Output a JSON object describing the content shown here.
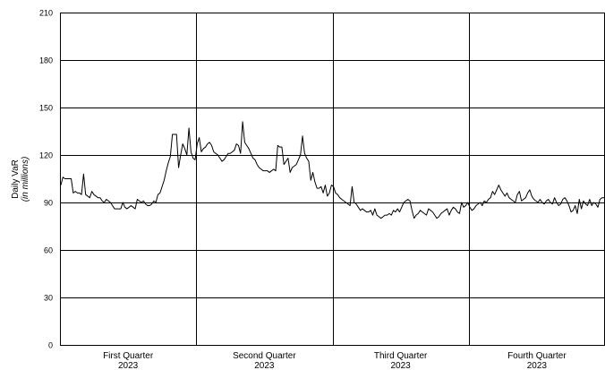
{
  "chart_data": {
    "type": "line",
    "ylabel": "Daily VaR",
    "ylabel_sub": "(in millions)",
    "ylim": [
      0,
      210
    ],
    "yticks": [
      0,
      30,
      60,
      90,
      120,
      150,
      180,
      210
    ],
    "grid": true,
    "quarters": [
      {
        "label": "First Quarter",
        "year": "2023"
      },
      {
        "label": "Second Quarter",
        "year": "2023"
      },
      {
        "label": "Third Quarter",
        "year": "2023"
      },
      {
        "label": "Fourth Quarter",
        "year": "2023"
      }
    ],
    "line_color": "#000000",
    "series": [
      {
        "values": [
          101,
          106,
          105,
          105,
          105,
          105,
          96,
          97,
          96,
          96,
          95,
          108,
          95,
          94,
          93,
          97,
          95,
          94,
          93,
          93,
          91,
          90,
          92,
          91,
          90,
          88,
          86,
          86,
          86,
          86,
          90,
          87,
          86,
          87,
          88,
          87,
          86,
          92,
          91,
          90,
          91,
          89,
          88,
          88,
          89,
          91,
          90,
          95,
          96,
          100,
          104,
          110,
          115,
          119,
          133,
          133,
          133,
          112,
          120,
          127,
          124,
          120,
          137,
          122,
          118,
          117,
          127,
          131,
          122,
          124,
          125,
          127,
          128,
          126,
          122,
          121,
          120,
          118,
          116,
          117,
          119,
          121,
          121,
          122,
          123,
          127,
          126,
          121,
          141,
          128,
          126,
          124,
          121,
          118,
          117,
          114,
          112,
          111,
          110,
          110,
          110,
          109,
          110,
          111,
          110,
          126,
          125,
          125,
          114,
          116,
          118,
          109,
          112,
          113,
          114,
          117,
          120,
          132,
          121,
          118,
          116,
          104,
          109,
          103,
          99,
          99,
          100,
          96,
          101,
          94,
          96,
          101,
          100,
          96,
          95,
          93,
          92,
          91,
          90,
          89,
          88,
          100,
          90,
          89,
          87,
          85,
          86,
          85,
          84,
          84,
          85,
          82,
          86,
          82,
          81,
          80,
          81,
          82,
          82,
          83,
          82,
          85,
          84,
          86,
          84,
          87,
          90,
          91,
          92,
          91,
          85,
          80,
          82,
          83,
          85,
          84,
          83,
          82,
          86,
          85,
          84,
          82,
          80,
          81,
          83,
          84,
          85,
          86,
          82,
          85,
          87,
          86,
          84,
          83,
          90,
          87,
          88,
          90,
          87,
          85,
          86,
          88,
          89,
          90,
          88,
          91,
          90,
          92,
          93,
          97,
          95,
          98,
          101,
          98,
          96,
          94,
          96,
          93,
          92,
          91,
          90,
          95,
          97,
          91,
          92,
          93,
          96,
          98,
          94,
          92,
          91,
          90,
          92,
          90,
          89,
          91,
          92,
          90,
          89,
          93,
          90,
          88,
          89,
          92,
          93,
          91,
          88,
          84,
          85,
          88,
          83,
          92,
          86,
          91,
          89,
          88,
          92,
          88,
          90,
          89,
          87,
          92,
          93,
          93
        ]
      }
    ]
  }
}
